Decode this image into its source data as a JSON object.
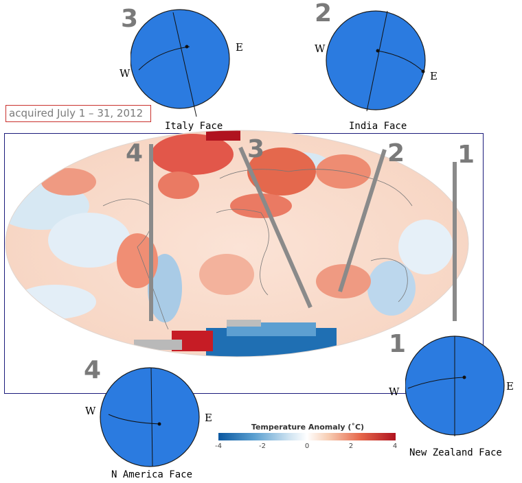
{
  "acquired_text": "acquired July 1 – 31, 2012",
  "legend": {
    "title": "Temperature Anomaly (˚C)",
    "ticks": [
      "-4",
      "-2",
      "0",
      "2",
      "4"
    ],
    "colors": {
      "cold": "#0a57a0",
      "neutral": "#ffffff",
      "hot": "#b0131f"
    }
  },
  "faces": [
    {
      "number": "3",
      "label": "Italy Face",
      "west": "W",
      "east": "E"
    },
    {
      "number": "2",
      "label": "India Face",
      "west": "W",
      "east": "E"
    },
    {
      "number": "4",
      "label": "N America Face",
      "west": "W",
      "east": "E"
    },
    {
      "number": "1",
      "label": "New Zealand Face",
      "west": "W",
      "east": "E"
    }
  ],
  "map_markers": [
    "4",
    "3",
    "2",
    "1"
  ],
  "globe_color": "#2b7be0"
}
